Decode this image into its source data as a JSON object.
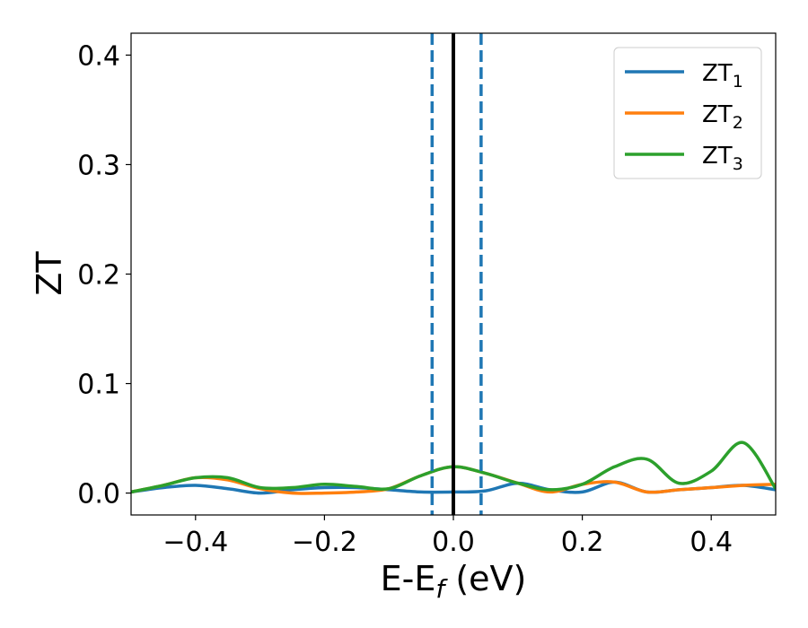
{
  "chart_data": {
    "type": "line",
    "xlabel": "E-E",
    "xlabel_sub": "f",
    "xlabel_unit": " (eV)",
    "ylabel": "ZT",
    "xlim": [
      -0.5,
      0.5
    ],
    "ylim": [
      -0.02,
      0.42
    ],
    "x_ticks": [
      -0.4,
      -0.2,
      0.0,
      0.2,
      0.4
    ],
    "x_tick_labels": [
      "−0.4",
      "−0.2",
      "0.0",
      "0.2",
      "0.4"
    ],
    "y_ticks": [
      0.0,
      0.1,
      0.2,
      0.3,
      0.4
    ],
    "y_tick_labels": [
      "0.0",
      "0.1",
      "0.2",
      "0.3",
      "0.4"
    ],
    "grid": false,
    "legend_position": "top-right",
    "vertical_lines": [
      {
        "x": 0.0,
        "style": "solid",
        "color": "#000000"
      },
      {
        "x": -0.033,
        "style": "dashed",
        "color": "#1f77b4"
      },
      {
        "x": 0.043,
        "style": "dashed",
        "color": "#1f77b4"
      }
    ],
    "series": [
      {
        "name": "ZT",
        "name_sub": "1",
        "color": "#1f77b4",
        "x": [
          -0.5,
          -0.45,
          -0.4,
          -0.35,
          -0.3,
          -0.25,
          -0.2,
          -0.15,
          -0.1,
          -0.05,
          0.0,
          0.05,
          0.1,
          0.15,
          0.2,
          0.25,
          0.3,
          0.35,
          0.4,
          0.45,
          0.5
        ],
        "values": [
          0.001,
          0.005,
          0.007,
          0.004,
          0.0,
          0.003,
          0.005,
          0.005,
          0.003,
          0.001,
          0.001,
          0.002,
          0.009,
          0.003,
          0.001,
          0.01,
          0.001,
          0.003,
          0.005,
          0.007,
          0.003
        ]
      },
      {
        "name": "ZT",
        "name_sub": "2",
        "color": "#ff7f0e",
        "x": [
          -0.5,
          -0.45,
          -0.4,
          -0.35,
          -0.3,
          -0.25,
          -0.2,
          -0.15,
          -0.1,
          -0.05,
          0.0,
          0.05,
          0.1,
          0.15,
          0.2,
          0.25,
          0.3,
          0.35,
          0.4,
          0.45,
          0.5
        ],
        "values": [
          0.001,
          0.007,
          0.014,
          0.012,
          0.004,
          0.0,
          0.0,
          0.001,
          0.004,
          0.016,
          0.024,
          0.018,
          0.009,
          0.001,
          0.008,
          0.01,
          0.001,
          0.003,
          0.005,
          0.007,
          0.008
        ]
      },
      {
        "name": "ZT",
        "name_sub": "3",
        "color": "#2ca02c",
        "x": [
          -0.5,
          -0.45,
          -0.4,
          -0.35,
          -0.3,
          -0.25,
          -0.2,
          -0.15,
          -0.1,
          -0.05,
          0.0,
          0.05,
          0.1,
          0.15,
          0.2,
          0.25,
          0.3,
          0.35,
          0.4,
          0.45,
          0.5
        ],
        "values": [
          0.001,
          0.007,
          0.014,
          0.014,
          0.005,
          0.005,
          0.008,
          0.006,
          0.004,
          0.016,
          0.024,
          0.018,
          0.009,
          0.003,
          0.008,
          0.024,
          0.031,
          0.009,
          0.02,
          0.046,
          0.004
        ]
      }
    ]
  }
}
